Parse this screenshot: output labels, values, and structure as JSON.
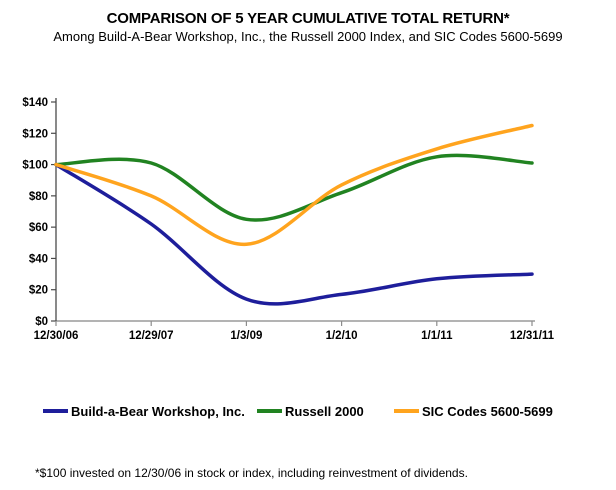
{
  "chart_data": {
    "type": "line",
    "title": "COMPARISON OF 5 YEAR CUMULATIVE TOTAL RETURN*",
    "subtitle": "Among Build-A-Bear Workshop, Inc., the Russell 2000 Index, and SIC Codes 5600-5699",
    "categories": [
      "12/30/06",
      "12/29/07",
      "1/3/09",
      "1/2/10",
      "1/1/11",
      "12/31/11"
    ],
    "y_tick_labels": [
      "$0",
      "$20",
      "$40",
      "$60",
      "$80",
      "$100",
      "$120",
      "$140"
    ],
    "ylim": [
      0,
      140
    ],
    "y_step": 20,
    "grid": false,
    "legend_position": "bottom",
    "smooth_curves": true,
    "series": [
      {
        "name": "Build-a-Bear Workshop, Inc.",
        "color": "#1e1e9b",
        "values": [
          100,
          62,
          14,
          17,
          27,
          30
        ]
      },
      {
        "name": "Russell 2000",
        "color": "#218321",
        "values": [
          100,
          101,
          65,
          82,
          105,
          101
        ]
      },
      {
        "name": "SIC Codes 5600-5699",
        "color": "#ffa41e",
        "values": [
          100,
          80,
          49,
          87,
          110,
          125
        ]
      }
    ],
    "axis": {
      "x_axis_color": "#b3b3b3",
      "y_axis_color": "#4a4a4a",
      "tick_color": "#8c8c8c",
      "label_color": "#000000"
    }
  },
  "footnote": {
    "text": "*$100 invested on 12/30/06 in stock or index, including reinvestment of dividends."
  }
}
